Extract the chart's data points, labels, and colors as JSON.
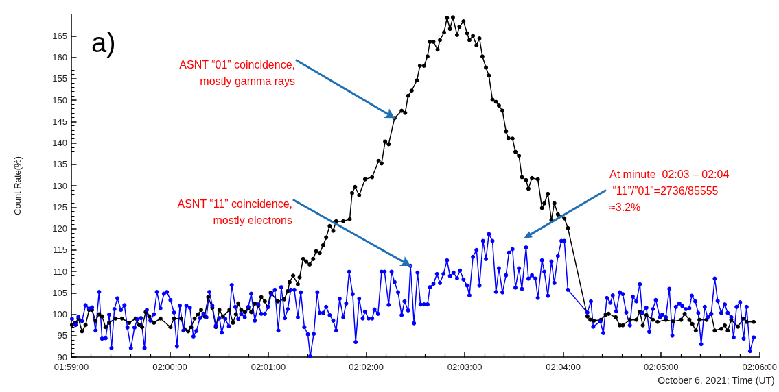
{
  "chart_data": {
    "type": "line",
    "ylabel": "Count Rate(%)",
    "xlabel": "October 6, 2021; Time (UT)",
    "xlim": [
      1.9833,
      2.1
    ],
    "xticks": [
      {
        "value": 1.9833,
        "label": "01:59:00"
      },
      {
        "value": 2.0,
        "label": "02:00:00"
      },
      {
        "value": 2.0167,
        "label": "02:01:00"
      },
      {
        "value": 2.0333,
        "label": "02:02:00"
      },
      {
        "value": 2.05,
        "label": "02:03:00"
      },
      {
        "value": 2.0667,
        "label": "02:04:00"
      },
      {
        "value": 2.0833,
        "label": "02:05:00"
      },
      {
        "value": 2.1,
        "label": "02:06:00"
      }
    ],
    "ylim": [
      90,
      170
    ],
    "yticks": [
      90,
      95,
      100,
      105,
      110,
      115,
      120,
      125,
      130,
      135,
      140,
      145,
      150,
      155,
      160,
      165
    ],
    "grid": false,
    "marker": "circle",
    "line_style": "solid",
    "annotations": [
      "a)",
      {
        "text": "ASNT “01” coincidence,\nmostly gamma rays",
        "x": 2.0381,
        "y": 145.8
      },
      {
        "text": "ASNT “11” coincidence,\nmostly electrons",
        "x": 2.0408,
        "y": 111.3
      },
      "At minute  02:03 – 02:04\n “11”/”01”=2736/85555\n≈3.2%"
    ],
    "series": [
      {
        "color": "#000000",
        "x": [
          1.9834,
          1.984,
          1.9845,
          1.9851,
          1.9857,
          1.9863,
          1.9868,
          1.9874,
          1.988,
          1.9885,
          1.9891,
          1.9897,
          1.9908,
          1.9919,
          1.9931,
          1.9942,
          1.9948,
          1.9953,
          1.9959,
          1.9965,
          1.9973,
          1.9984,
          2.0001,
          2.0007,
          2.0019,
          2.0025,
          2.0031,
          2.0036,
          2.0042,
          2.0048,
          2.0053,
          2.0059,
          2.0065,
          2.0072,
          2.0078,
          2.0084,
          2.009,
          2.0101,
          2.0107,
          2.0112,
          2.0116,
          2.0121,
          2.0127,
          2.0133,
          2.0138,
          2.0144,
          2.015,
          2.0155,
          2.0161,
          2.0166,
          2.0171,
          2.0183,
          2.0194,
          2.02,
          2.0203,
          2.0209,
          2.0217,
          2.022,
          2.0226,
          2.0231,
          2.0237,
          2.0243,
          2.0248,
          2.0254,
          2.026,
          2.0265,
          2.0271,
          2.0277,
          2.0282,
          2.0294,
          2.0305,
          2.0309,
          2.0314,
          2.0321,
          2.0331,
          2.0343,
          2.0354,
          2.0359,
          2.0365,
          2.0371,
          2.0381,
          2.0393,
          2.0399,
          2.0404,
          2.041,
          2.0419,
          2.0424,
          2.0431,
          2.0437,
          2.0441,
          2.0447,
          2.0454,
          2.0458,
          2.0465,
          2.047,
          2.0475,
          2.048,
          2.0487,
          2.0491,
          2.0498,
          2.0504,
          2.0508,
          2.0514,
          2.052,
          2.0525,
          2.053,
          2.0536,
          2.0541,
          2.0547,
          2.0553,
          2.0558,
          2.0564,
          2.057,
          2.0574,
          2.0581,
          2.0586,
          2.0592,
          2.0597,
          2.0604,
          2.0608,
          2.0614,
          2.0624,
          2.0631,
          2.0635,
          2.0641,
          2.0647,
          2.0652,
          2.0658,
          2.0669,
          2.0675,
          2.0708,
          2.0713,
          2.0719,
          2.0731,
          2.0739,
          2.0744,
          2.0756,
          2.0763,
          2.0768,
          2.078,
          2.0791,
          2.0797,
          2.0802,
          2.0808,
          2.0819,
          2.0827,
          2.0841,
          2.0853,
          2.0867,
          2.0873,
          2.0881,
          2.0886,
          2.0892,
          2.0898,
          2.091,
          2.0918,
          2.0924,
          2.0935,
          2.0941,
          2.0946,
          2.0952,
          2.0963,
          2.0973,
          2.0978,
          2.099
        ],
        "values": [
          97.5,
          98,
          99,
          96,
          97.5,
          101,
          101,
          98.5,
          100,
          99.5,
          97,
          98,
          99,
          99,
          98,
          99,
          97.5,
          97,
          100.5,
          99.5,
          98,
          99,
          97,
          99,
          99,
          96.5,
          96,
          97,
          99,
          100,
          101,
          99.5,
          104,
          101.5,
          97,
          101,
          99.5,
          101,
          98,
          100,
          102.5,
          101,
          100.5,
          101.5,
          100.5,
          102.5,
          102,
          104,
          103,
          101.7,
          105,
          103,
          103.5,
          105.4,
          107.5,
          109,
          107,
          108.6,
          112.9,
          112.3,
          111.6,
          112.9,
          114.7,
          114.3,
          116.1,
          117.9,
          120.6,
          119.5,
          121.7,
          121.7,
          122.2,
          128.3,
          129.7,
          127.8,
          131.5,
          132,
          135.8,
          135.2,
          140.3,
          139.7,
          145.8,
          147.5,
          147,
          151,
          152.2,
          154.6,
          158,
          158,
          160.2,
          163.6,
          163.6,
          161.8,
          164,
          165.8,
          169.2,
          166.6,
          169.3,
          165.2,
          167.1,
          168.4,
          165.6,
          164,
          165,
          162.8,
          164.4,
          160.2,
          157.6,
          155.7,
          150.1,
          149.6,
          148.7,
          147.5,
          142.7,
          141.1,
          141,
          137.9,
          137,
          132,
          131.3,
          129.3,
          131.8,
          131.5,
          124.8,
          125.9,
          128.1,
          122,
          125.9,
          123.3,
          122.4,
          120.1,
          99.5,
          98.7,
          98.5,
          98.7,
          99.9,
          100.1,
          99.3,
          97.4,
          97.4,
          98.7,
          98.7,
          100.6,
          97.4,
          99.8,
          98.7,
          98.2,
          98.7,
          98.3,
          98.7,
          100.1,
          98.7,
          97.7,
          96.2,
          98.7,
          98.7,
          100.1,
          96.2,
          96.6,
          97.4,
          96.2,
          98.7,
          97.1,
          99,
          98.2,
          98.2
        ]
      },
      {
        "color": "#0000ff",
        "x": [
          1.9834,
          1.984,
          1.9845,
          1.9851,
          1.9857,
          1.9863,
          1.9868,
          1.9874,
          1.988,
          1.9885,
          1.9891,
          1.9897,
          1.9901,
          1.9906,
          1.9911,
          1.9917,
          1.9923,
          1.9928,
          1.9934,
          1.994,
          1.9945,
          1.9951,
          1.9957,
          1.9961,
          1.9967,
          1.9973,
          1.9978,
          1.9984,
          1.999,
          1.9995,
          2.0001,
          2.0007,
          2.0012,
          2.0017,
          2.0023,
          2.0028,
          2.0034,
          2.004,
          2.0045,
          2.0051,
          2.0057,
          2.0062,
          2.0067,
          2.0072,
          2.0078,
          2.0084,
          2.0088,
          2.0094,
          2.01,
          2.0105,
          2.0111,
          2.0116,
          2.0121,
          2.0127,
          2.0133,
          2.0138,
          2.0144,
          2.015,
          2.0155,
          2.0161,
          2.0167,
          2.0172,
          2.0178,
          2.0184,
          2.0189,
          2.0195,
          2.02,
          2.0205,
          2.0211,
          2.0217,
          2.0222,
          2.0228,
          2.0234,
          2.0238,
          2.0244,
          2.025,
          2.0254,
          2.026,
          2.0265,
          2.0271,
          2.0277,
          2.0282,
          2.0288,
          2.0294,
          2.0299,
          2.0304,
          2.031,
          2.0315,
          2.0321,
          2.0327,
          2.0331,
          2.0337,
          2.0343,
          2.0347,
          2.0353,
          2.0359,
          2.0364,
          2.0371,
          2.0376,
          2.0381,
          2.0387,
          2.0393,
          2.0398,
          2.0404,
          2.0408,
          2.0414,
          2.042,
          2.0425,
          2.0431,
          2.0437,
          2.0441,
          2.0447,
          2.0453,
          2.0458,
          2.0464,
          2.047,
          2.0475,
          2.0481,
          2.0487,
          2.0492,
          2.0498,
          2.0504,
          2.0508,
          2.0514,
          2.052,
          2.0525,
          2.0531,
          2.0536,
          2.0541,
          2.0547,
          2.0553,
          2.0558,
          2.0564,
          2.057,
          2.0575,
          2.0581,
          2.0586,
          2.0592,
          2.0597,
          2.0604,
          2.0608,
          2.0614,
          2.062,
          2.0624,
          2.0631,
          2.0635,
          2.0641,
          2.0647,
          2.0652,
          2.0658,
          2.0664,
          2.0669,
          2.0675,
          2.0708,
          2.0714,
          2.0718,
          2.073,
          2.0735,
          2.0741,
          2.0747,
          2.0751,
          2.0757,
          2.0763,
          2.0768,
          2.0774,
          2.078,
          2.0785,
          2.0791,
          2.0797,
          2.0801,
          2.0808,
          2.0813,
          2.0819,
          2.0824,
          2.0831,
          2.0835,
          2.0841,
          2.0847,
          2.0852,
          2.0858,
          2.0864,
          2.0869,
          2.0875,
          2.0881,
          2.0885,
          2.0891,
          2.0896,
          2.0901,
          2.0907,
          2.0912,
          2.0918,
          2.0924,
          2.0929,
          2.0935,
          2.0941,
          2.0946,
          2.0952,
          2.0956,
          2.0961,
          2.0967,
          2.0973,
          2.0978,
          2.0984,
          2.099
        ],
        "values": [
          98.9,
          97.5,
          99.4,
          98.4,
          102.1,
          101.3,
          101.6,
          96.2,
          105.2,
          94.3,
          94.4,
          99.9,
          92.1,
          101.2,
          103.7,
          101,
          102.1,
          96.9,
          92.1,
          96.9,
          98.8,
          99.1,
          92.1,
          101,
          98.5,
          100,
          105.2,
          101.4,
          104.8,
          105.2,
          103.3,
          100.4,
          92.5,
          102,
          96.2,
          102,
          101.5,
          94.8,
          96.1,
          99.1,
          100.1,
          99.3,
          105.2,
          102,
          97.3,
          99.1,
          95.7,
          98.9,
          97.2,
          106.8,
          101.7,
          98.9,
          100.1,
          99.3,
          101.7,
          104.8,
          98.5,
          102.3,
          100.1,
          100.1,
          101.7,
          104.7,
          105.7,
          96.2,
          106.3,
          99.1,
          101.2,
          105.7,
          105.7,
          99.3,
          105.1,
          97,
          95.3,
          90.2,
          95.4,
          105.1,
          100.3,
          100.3,
          101.7,
          99.8,
          98.5,
          96.2,
          103.6,
          99.3,
          102.5,
          109.9,
          104.7,
          93.5,
          103.6,
          99,
          100.6,
          99,
          99,
          101.1,
          100.1,
          109.9,
          109.9,
          102.2,
          109.9,
          107.5,
          105.1,
          99.8,
          103,
          100.9,
          111.3,
          97.9,
          109.7,
          102.3,
          102.3,
          102.3,
          106.3,
          107.1,
          109.4,
          107.3,
          109.4,
          112.6,
          108.9,
          109.7,
          108.4,
          110.2,
          108.1,
          106.7,
          104.4,
          113.4,
          115,
          106.7,
          117.1,
          112.9,
          118.7,
          117.1,
          105.2,
          110.7,
          105.1,
          109.1,
          114.4,
          115.2,
          106.2,
          110.7,
          105.9,
          115.6,
          108.3,
          109.1,
          108.3,
          103.8,
          112.6,
          109.9,
          104.3,
          112.3,
          107.3,
          113.6,
          117.1,
          117.1,
          105.7,
          100.4,
          103,
          97.1,
          98.3,
          95.6,
          103.8,
          102.7,
          104.4,
          100.7,
          105.1,
          104.7,
          100.4,
          97.4,
          104.1,
          103,
          107,
          100.3,
          101.5,
          95.9,
          101.2,
          103.3,
          99.3,
          99.9,
          99.3,
          105.9,
          95,
          101.7,
          102.5,
          101.9,
          101.2,
          101.4,
          104.3,
          103,
          100.3,
          93,
          101.7,
          99.3,
          100.1,
          108.3,
          103.1,
          100.3,
          102.3,
          100.3,
          99.3,
          94.6,
          101.7,
          102.8,
          94.3,
          101.7,
          91.4,
          94.6
        ]
      }
    ]
  }
}
